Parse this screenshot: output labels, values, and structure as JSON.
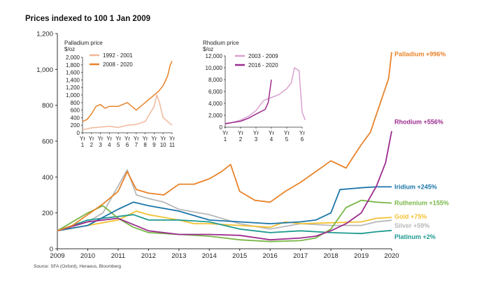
{
  "chart_data": [
    {
      "type": "line",
      "title": "Prices indexed to 100 1 Jan 2009",
      "source": "Source: SFA (Oxford), Heraeus, Bloomberg",
      "xlim": [
        2009,
        2020
      ],
      "ylim": [
        0,
        1200
      ],
      "x_ticks": [
        "2009",
        "2010",
        "2011",
        "2012",
        "2013",
        "2014",
        "2015",
        "2016",
        "2017",
        "2018",
        "2019",
        "2020"
      ],
      "y_ticks": [
        "0",
        "200",
        "400",
        "600",
        "800",
        "1,000",
        "1,200"
      ],
      "series": [
        {
          "name": "Palladium",
          "label": "Palladium +996%",
          "color": "#E8832A",
          "x": [
            2009,
            2009.5,
            2010,
            2010.5,
            2011,
            2011.3,
            2011.6,
            2012,
            2012.5,
            2013,
            2013.5,
            2014,
            2014.4,
            2014.7,
            2015,
            2015.5,
            2016,
            2016.5,
            2017,
            2017.5,
            2018,
            2018.5,
            2018.8,
            2019,
            2019.3,
            2019.6,
            2019.9,
            2020
          ],
          "y": [
            100,
            130,
            190,
            250,
            320,
            430,
            330,
            310,
            300,
            360,
            360,
            390,
            430,
            470,
            320,
            270,
            260,
            320,
            370,
            430,
            490,
            450,
            530,
            580,
            650,
            800,
            950,
            1096
          ]
        },
        {
          "name": "Rhodium",
          "label": "Rhodium +556%",
          "color": "#9C2C8E",
          "x": [
            2009,
            2010,
            2011,
            2012,
            2013,
            2014,
            2015,
            2016,
            2017,
            2017.5,
            2018,
            2018.5,
            2019,
            2019.5,
            2019.8,
            2020
          ],
          "y": [
            100,
            150,
            170,
            100,
            80,
            80,
            75,
            50,
            60,
            70,
            100,
            140,
            200,
            350,
            480,
            656
          ]
        },
        {
          "name": "Iridium",
          "label": "Iridium +245%",
          "color": "#1B75A8",
          "x": [
            2009,
            2010,
            2011,
            2011.5,
            2012,
            2013,
            2014,
            2015,
            2016,
            2017,
            2017.5,
            2018,
            2018.3,
            2019,
            2019.5,
            2020
          ],
          "y": [
            100,
            130,
            220,
            260,
            240,
            210,
            160,
            150,
            140,
            150,
            160,
            200,
            330,
            340,
            345,
            345
          ]
        },
        {
          "name": "Ruthenium",
          "label": "Ruthenium +155%",
          "color": "#7AB648",
          "x": [
            2009,
            2010,
            2010.5,
            2011,
            2011.5,
            2012,
            2013,
            2014,
            2015,
            2016,
            2017,
            2017.5,
            2018,
            2018.5,
            2019,
            2019.5,
            2020
          ],
          "y": [
            100,
            200,
            240,
            170,
            120,
            90,
            80,
            70,
            50,
            40,
            45,
            60,
            110,
            230,
            270,
            260,
            255
          ]
        },
        {
          "name": "Gold",
          "label": "Gold +75%",
          "color": "#F2C230",
          "x": [
            2009,
            2010,
            2011,
            2011.6,
            2012,
            2013,
            2013.5,
            2014,
            2015,
            2016,
            2016.5,
            2017,
            2018,
            2019,
            2019.5,
            2020
          ],
          "y": [
            100,
            130,
            160,
            210,
            190,
            160,
            140,
            140,
            130,
            120,
            150,
            140,
            145,
            150,
            170,
            175
          ]
        },
        {
          "name": "Silver",
          "label": "Silver +59%",
          "color": "#B8B8B8",
          "x": [
            2009,
            2010,
            2010.5,
            2011,
            2011.3,
            2011.6,
            2012,
            2012.5,
            2013,
            2014,
            2015,
            2016,
            2017,
            2018,
            2019,
            2019.5,
            2020
          ],
          "y": [
            100,
            150,
            200,
            350,
            440,
            300,
            280,
            260,
            220,
            190,
            140,
            110,
            140,
            130,
            130,
            150,
            159
          ]
        },
        {
          "name": "Platinum",
          "label": "Platinum +2%",
          "color": "#1E9A8F",
          "x": [
            2009,
            2010,
            2011,
            2011.5,
            2012,
            2013,
            2014,
            2015,
            2016,
            2017,
            2018,
            2019,
            2019.5,
            2020
          ],
          "y": [
            100,
            160,
            180,
            190,
            160,
            160,
            150,
            110,
            90,
            100,
            90,
            85,
            95,
            102
          ]
        }
      ]
    },
    {
      "type": "line",
      "title": "Palladium price",
      "ylabel": "$/oz",
      "ylim": [
        0,
        2000
      ],
      "y_ticks": [
        "0",
        "200",
        "400",
        "600",
        "800",
        "1,000",
        "1,200",
        "1,400",
        "1,600",
        "1,800",
        "2,000"
      ],
      "x_ticks": [
        "Yr 1",
        "Yr 2",
        "Yr 3",
        "Yr 4",
        "Yr 5",
        "Yr 6",
        "Yr 7",
        "Yr 8",
        "Yr 9",
        "Yr 10",
        "Yr 11"
      ],
      "series": [
        {
          "name": "1992 - 2001",
          "color": "#F0B89A",
          "x": [
            1,
            2,
            3,
            4,
            5,
            6,
            7,
            8,
            9,
            9.3,
            9.6,
            10,
            10.5,
            11
          ],
          "y": [
            80,
            130,
            150,
            170,
            140,
            200,
            220,
            300,
            700,
            1000,
            800,
            400,
            300,
            200
          ]
        },
        {
          "name": "2008 - 2020",
          "color": "#E8832A",
          "x": [
            1,
            1.5,
            2,
            2.5,
            3,
            3.5,
            4,
            5,
            6,
            7,
            8,
            9,
            9.5,
            10,
            10.5,
            10.8,
            11
          ],
          "y": [
            300,
            350,
            500,
            700,
            750,
            650,
            700,
            700,
            800,
            600,
            800,
            1000,
            1100,
            1250,
            1500,
            1800,
            1900
          ]
        }
      ]
    },
    {
      "type": "line",
      "title": "Rhodium price",
      "ylabel": "$/oz",
      "ylim": [
        0,
        12000
      ],
      "y_ticks": [
        "0",
        "2,000",
        "4,000",
        "6,000",
        "8,000",
        "10,000",
        "12,000"
      ],
      "x_ticks": [
        "Yr 1",
        "Yr 2",
        "Yr 3",
        "Yr 4",
        "Yr 5",
        "Yr 6"
      ],
      "series": [
        {
          "name": "2003 - 2009",
          "color": "#D9A0CF",
          "x": [
            1,
            1.5,
            2,
            2.5,
            3,
            3.5,
            4,
            4.5,
            5,
            5.3,
            5.5,
            5.8,
            6,
            6.2
          ],
          "y": [
            500,
            800,
            1200,
            1800,
            2800,
            4500,
            5000,
            5500,
            6500,
            7500,
            10000,
            9500,
            2500,
            1200
          ]
        },
        {
          "name": "2016 - 2020",
          "color": "#9C2C8E",
          "x": [
            1,
            1.5,
            2,
            2.5,
            3,
            3.3,
            3.6,
            3.8,
            4
          ],
          "y": [
            600,
            800,
            1000,
            1500,
            2200,
            2600,
            3000,
            4200,
            8000
          ]
        }
      ]
    }
  ]
}
